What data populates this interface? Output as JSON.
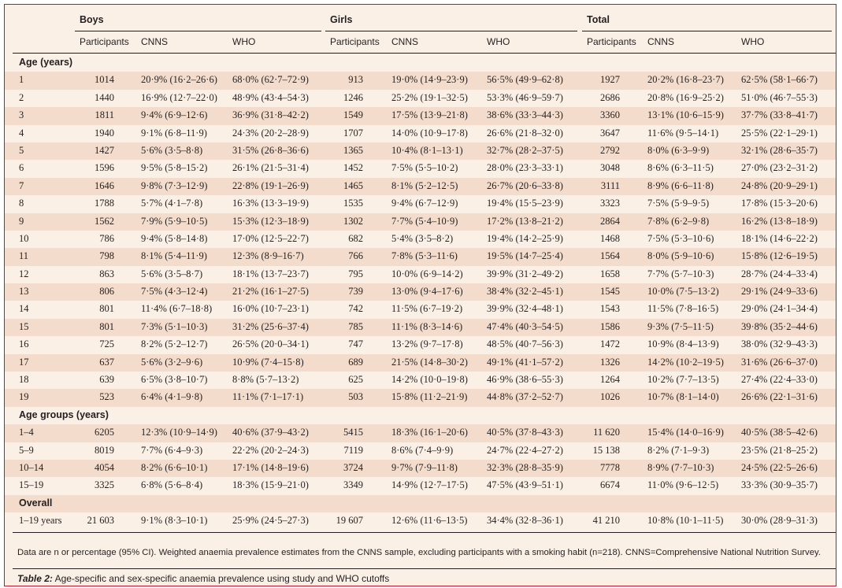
{
  "table": {
    "groups": [
      "Boys",
      "Girls",
      "Total"
    ],
    "subheaders": [
      "Participants",
      "CNNS",
      "WHO",
      "Participants",
      "CNNS",
      "WHO",
      "Participants",
      "CNNS",
      "WHO"
    ],
    "sections": [
      {
        "title": "Age (years)",
        "rows": [
          [
            "1",
            "1014",
            "20·9% (16·2–26·6)",
            "68·0% (62·7–72·9)",
            "913",
            "19·0% (14·9–23·9)",
            "56·5% (49·9–62·8)",
            "1927",
            "20·2% (16·8–23·7)",
            "62·5% (58·1–66·7)"
          ],
          [
            "2",
            "1440",
            "16·9% (12·7–22·0)",
            "48·9% (43·4–54·3)",
            "1246",
            "25·2% (19·1–32·5)",
            "53·3% (46·9–59·7)",
            "2686",
            "20·8% (16·9–25·2)",
            "51·0% (46·7–55·3)"
          ],
          [
            "3",
            "1811",
            "9·4% (6·9–12·6)",
            "36·9% (31·8–42·2)",
            "1549",
            "17·5% (13·9–21·8)",
            "38·6% (33·3–44·3)",
            "3360",
            "13·1% (10·6–15·9)",
            "37·7% (33·8–41·7)"
          ],
          [
            "4",
            "1940",
            "9·1% (6·8–11·9)",
            "24·3% (20·2–28·9)",
            "1707",
            "14·0% (10·9–17·8)",
            "26·6% (21·8–32·0)",
            "3647",
            "11·6% (9·5–14·1)",
            "25·5% (22·1–29·1)"
          ],
          [
            "5",
            "1427",
            "5·6% (3·5–8·8)",
            "31·5% (26·8–36·6)",
            "1365",
            "10·4% (8·1–13·1)",
            "32·7% (28·2–37·5)",
            "2792",
            "8·0% (6·3–9·9)",
            "32·1% (28·6–35·7)"
          ],
          [
            "6",
            "1596",
            "9·5% (5·8–15·2)",
            "26·1% (21·5–31·4)",
            "1452",
            "7·5% (5·5–10·2)",
            "28·0% (23·3–33·1)",
            "3048",
            "8·6% (6·3–11·5)",
            "27·0% (23·2–31·2)"
          ],
          [
            "7",
            "1646",
            "9·8% (7·3–12·9)",
            "22·8% (19·1–26·9)",
            "1465",
            "8·1% (5·2–12·5)",
            "26·7% (20·6–33·8)",
            "3111",
            "8·9% (6·6–11·8)",
            "24·8% (20·9–29·1)"
          ],
          [
            "8",
            "1788",
            "5·7% (4·1–7·8)",
            "16·3% (13·3–19·9)",
            "1535",
            "9·4% (6·7–12·9)",
            "19·4% (15·5–23·9)",
            "3323",
            "7·5% (5·9–9·5)",
            "17·8% (15·3–20·6)"
          ],
          [
            "9",
            "1562",
            "7·9% (5·9–10·5)",
            "15·3% (12·3–18·9)",
            "1302",
            "7·7% (5·4–10·9)",
            "17·2% (13·8–21·2)",
            "2864",
            "7·8% (6·2–9·8)",
            "16·2% (13·8–18·9)"
          ],
          [
            "10",
            "786",
            "9·4% (5·8–14·8)",
            "17·0% (12·5–22·7)",
            "682",
            "5·4% (3·5–8·2)",
            "19·4% (14·2–25·9)",
            "1468",
            "7·5% (5·3–10·6)",
            "18·1% (14·6–22·2)"
          ],
          [
            "11",
            "798",
            "8·1% (5·4–11·9)",
            "12·3% (8·9–16·7)",
            "766",
            "7·8% (5·3–11·6)",
            "19·5% (14·7–25·4)",
            "1564",
            "8·0% (5·9–10·6)",
            "15·8% (12·6–19·5)"
          ],
          [
            "12",
            "863",
            "5·6% (3·5–8·7)",
            "18·1% (13·7–23·7)",
            "795",
            "10·0% (6·9–14·2)",
            "39·9% (31·2–49·2)",
            "1658",
            "7·7% (5·7–10·3)",
            "28·7% (24·4–33·4)"
          ],
          [
            "13",
            "806",
            "7·5% (4·3–12·4)",
            "21·2% (16·1–27·5)",
            "739",
            "13·0% (9·4–17·6)",
            "38·4% (32·2–45·1)",
            "1545",
            "10·0% (7·5–13·2)",
            "29·1% (24·9–33·6)"
          ],
          [
            "14",
            "801",
            "11·4% (6·7–18·8)",
            "16·0% (10·7–23·1)",
            "742",
            "11·5% (6·7–19·2)",
            "39·9% (32·4–48·1)",
            "1543",
            "11·5% (7·8–16·5)",
            "29·0% (24·1–34·4)"
          ],
          [
            "15",
            "801",
            "7·3% (5·1–10·3)",
            "31·2% (25·6–37·4)",
            "785",
            "11·1% (8·3–14·6)",
            "47·4% (40·3–54·5)",
            "1586",
            "9·3% (7·5–11·5)",
            "39·8% (35·2–44·6)"
          ],
          [
            "16",
            "725",
            "8·2% (5·2–12·7)",
            "26·5% (20·0–34·1)",
            "747",
            "13·2% (9·7–17·8)",
            "48·5% (40·7–56·3)",
            "1472",
            "10·9% (8·4–13·9)",
            "38·0% (32·9–43·3)"
          ],
          [
            "17",
            "637",
            "5·6% (3·2–9·6)",
            "10·9% (7·4–15·8)",
            "689",
            "21·5% (14·8–30·2)",
            "49·1% (41·1–57·2)",
            "1326",
            "14·2% (10·2–19·5)",
            "31·6% (26·6–37·0)"
          ],
          [
            "18",
            "639",
            "6·5% (3·8–10·7)",
            "8·8% (5·7–13·2)",
            "625",
            "14·2% (10·0–19·8)",
            "46·9% (38·6–55·3)",
            "1264",
            "10·2% (7·7–13·5)",
            "27·4% (22·4–33·0)"
          ],
          [
            "19",
            "523",
            "6·4% (4·1–9·8)",
            "11·1% (7·1–17·1)",
            "503",
            "15·8% (11·2–21·9)",
            "44·8% (37·2–52·7)",
            "1026",
            "10·7% (8·1–14·0)",
            "26·6% (22·1–31·6)"
          ]
        ]
      },
      {
        "title": "Age groups (years)",
        "rows": [
          [
            "1–4",
            "6205",
            "12·3% (10·9–14·9)",
            "40·6% (37·9–43·2)",
            "5415",
            "18·3% (16·1–20·6)",
            "40·5% (37·8–43·3)",
            "11 620",
            "15·4% (14·0–16·9)",
            "40·5% (38·5–42·6)"
          ],
          [
            "5–9",
            "8019",
            "7·7% (6·4–9·3)",
            "22·2% (20·2–24·3)",
            "7119",
            "8·6% (7·4–9·9)",
            "24·7% (22·4–27·2)",
            "15 138",
            "8·2% (7·1–9·3)",
            "23·5% (21·8–25·2)"
          ],
          [
            "10–14",
            "4054",
            "8·2% (6·6–10·1)",
            "17·1% (14·8–19·6)",
            "3724",
            "9·7% (7·9–11·8)",
            "32·3% (28·8–35·9)",
            "7778",
            "8·9% (7·7–10·3)",
            "24·5% (22·5–26·6)"
          ],
          [
            "15–19",
            "3325",
            "6·8% (5·6–8·4)",
            "18·3% (15·9–21·0)",
            "3349",
            "14·9% (12·7–17·5)",
            "47·5% (43·9–51·1)",
            "6674",
            "11·0% (9·6–12·5)",
            "33·3% (30·9–35·7)"
          ]
        ]
      },
      {
        "title": "Overall",
        "rows": [
          [
            "1–19 years",
            "21 603",
            "9·1% (8·3–10·1)",
            "25·9% (24·5–27·3)",
            "19 607",
            "12·6% (11·6–13·5)",
            "34·4% (32·8–36·1)",
            "41 210",
            "10·8% (10·1–11·5)",
            "30·0% (28·9–31·3)"
          ]
        ]
      }
    ]
  },
  "footnote": "Data are n or percentage (95% CI). Weighted anaemia prevalence estimates from the CNNS sample, excluding participants with a smoking habit (n=218). CNNS=Comprehensive National Nutrition Survey.",
  "caption": {
    "label": "Table 2:",
    "text": " Age-specific and sex-specific anaemia prevalence using study and WHO cutoffs"
  }
}
